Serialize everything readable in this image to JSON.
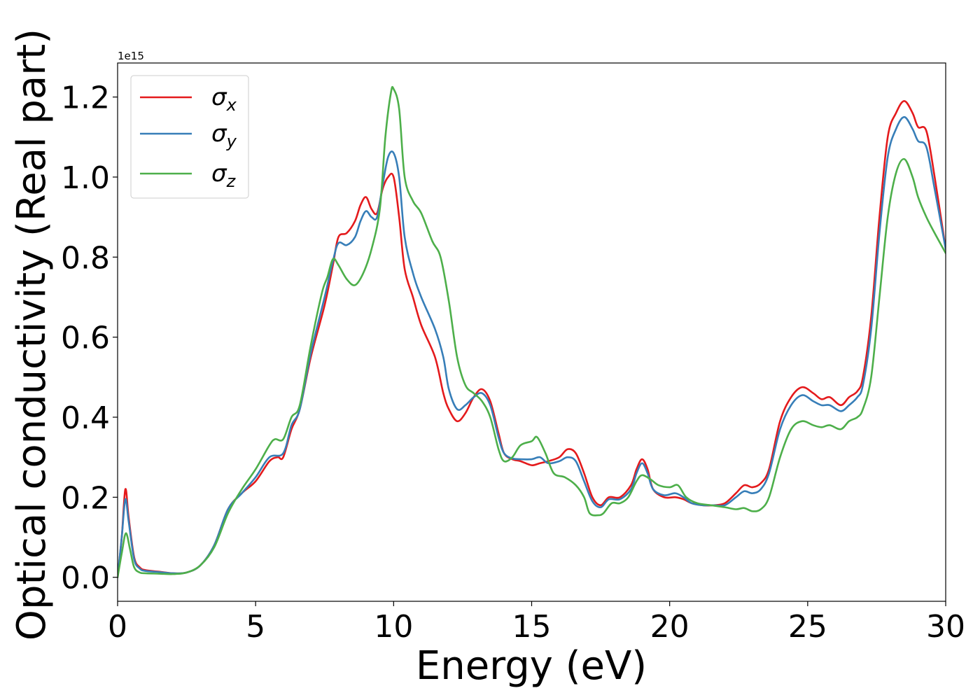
{
  "chart_data": {
    "type": "line",
    "title": "",
    "xlabel": "Energy (eV)",
    "ylabel": "Optical conductivity (Real part)",
    "y_offset_label": "1e15",
    "xlim": [
      0,
      30
    ],
    "ylim": [
      -0.06,
      1.285
    ],
    "x_ticks": [
      0,
      5,
      10,
      15,
      20,
      25,
      30
    ],
    "x_tick_labels": [
      "0",
      "5",
      "10",
      "15",
      "20",
      "25",
      "30"
    ],
    "y_ticks": [
      0.0,
      0.2,
      0.4,
      0.6,
      0.8,
      1.0,
      1.2
    ],
    "y_tick_labels": [
      "0.0",
      "0.2",
      "0.4",
      "0.6",
      "0.8",
      "1.0",
      "1.2"
    ],
    "grid": false,
    "legend_position": "top-left",
    "series": [
      {
        "name": "σx",
        "label_base": "σ",
        "label_sub": "x",
        "color": "#e41a1c",
        "points": [
          [
            0,
            0.0
          ],
          [
            0.15,
            0.1
          ],
          [
            0.28,
            0.22
          ],
          [
            0.4,
            0.15
          ],
          [
            0.6,
            0.05
          ],
          [
            0.8,
            0.025
          ],
          [
            1.0,
            0.018
          ],
          [
            1.5,
            0.014
          ],
          [
            2.0,
            0.01
          ],
          [
            2.5,
            0.012
          ],
          [
            3.0,
            0.03
          ],
          [
            3.5,
            0.08
          ],
          [
            4.0,
            0.17
          ],
          [
            4.5,
            0.21
          ],
          [
            5.0,
            0.24
          ],
          [
            5.5,
            0.29
          ],
          [
            5.8,
            0.3
          ],
          [
            6.0,
            0.3
          ],
          [
            6.3,
            0.37
          ],
          [
            6.6,
            0.42
          ],
          [
            7.0,
            0.55
          ],
          [
            7.5,
            0.68
          ],
          [
            7.8,
            0.78
          ],
          [
            8.0,
            0.85
          ],
          [
            8.3,
            0.86
          ],
          [
            8.6,
            0.89
          ],
          [
            8.8,
            0.93
          ],
          [
            9.0,
            0.95
          ],
          [
            9.2,
            0.92
          ],
          [
            9.4,
            0.91
          ],
          [
            9.6,
            0.97
          ],
          [
            9.8,
            1.0
          ],
          [
            10.0,
            1.0
          ],
          [
            10.2,
            0.9
          ],
          [
            10.4,
            0.77
          ],
          [
            10.7,
            0.7
          ],
          [
            11.0,
            0.63
          ],
          [
            11.5,
            0.55
          ],
          [
            11.8,
            0.46
          ],
          [
            12.0,
            0.42
          ],
          [
            12.3,
            0.39
          ],
          [
            12.6,
            0.41
          ],
          [
            12.9,
            0.45
          ],
          [
            13.2,
            0.47
          ],
          [
            13.5,
            0.44
          ],
          [
            13.8,
            0.36
          ],
          [
            14.0,
            0.31
          ],
          [
            14.3,
            0.295
          ],
          [
            14.6,
            0.29
          ],
          [
            15.0,
            0.28
          ],
          [
            15.3,
            0.285
          ],
          [
            15.6,
            0.29
          ],
          [
            16.0,
            0.3
          ],
          [
            16.3,
            0.32
          ],
          [
            16.6,
            0.31
          ],
          [
            16.9,
            0.26
          ],
          [
            17.2,
            0.2
          ],
          [
            17.5,
            0.18
          ],
          [
            17.8,
            0.2
          ],
          [
            18.2,
            0.2
          ],
          [
            18.6,
            0.23
          ],
          [
            18.8,
            0.27
          ],
          [
            19.0,
            0.295
          ],
          [
            19.2,
            0.27
          ],
          [
            19.4,
            0.22
          ],
          [
            19.8,
            0.2
          ],
          [
            20.2,
            0.2
          ],
          [
            20.5,
            0.195
          ],
          [
            20.8,
            0.185
          ],
          [
            21.2,
            0.18
          ],
          [
            21.6,
            0.18
          ],
          [
            22.0,
            0.185
          ],
          [
            22.4,
            0.21
          ],
          [
            22.7,
            0.23
          ],
          [
            23.0,
            0.225
          ],
          [
            23.3,
            0.235
          ],
          [
            23.6,
            0.27
          ],
          [
            24.0,
            0.39
          ],
          [
            24.4,
            0.45
          ],
          [
            24.8,
            0.475
          ],
          [
            25.2,
            0.46
          ],
          [
            25.5,
            0.445
          ],
          [
            25.8,
            0.45
          ],
          [
            26.2,
            0.43
          ],
          [
            26.5,
            0.45
          ],
          [
            26.8,
            0.465
          ],
          [
            27.0,
            0.5
          ],
          [
            27.3,
            0.65
          ],
          [
            27.6,
            0.9
          ],
          [
            27.9,
            1.1
          ],
          [
            28.2,
            1.16
          ],
          [
            28.5,
            1.19
          ],
          [
            28.8,
            1.16
          ],
          [
            29.0,
            1.125
          ],
          [
            29.3,
            1.115
          ],
          [
            29.6,
            1.0
          ],
          [
            30.0,
            0.82
          ]
        ]
      },
      {
        "name": "σy",
        "label_base": "σ",
        "label_sub": "y",
        "color": "#377eb8",
        "points": [
          [
            0,
            0.0
          ],
          [
            0.15,
            0.1
          ],
          [
            0.28,
            0.195
          ],
          [
            0.4,
            0.14
          ],
          [
            0.6,
            0.045
          ],
          [
            0.8,
            0.022
          ],
          [
            1.0,
            0.016
          ],
          [
            1.5,
            0.013
          ],
          [
            2.0,
            0.01
          ],
          [
            2.5,
            0.012
          ],
          [
            3.0,
            0.03
          ],
          [
            3.5,
            0.08
          ],
          [
            4.0,
            0.17
          ],
          [
            4.5,
            0.21
          ],
          [
            5.0,
            0.25
          ],
          [
            5.5,
            0.3
          ],
          [
            6.0,
            0.31
          ],
          [
            6.3,
            0.38
          ],
          [
            6.6,
            0.42
          ],
          [
            7.0,
            0.56
          ],
          [
            7.5,
            0.7
          ],
          [
            7.8,
            0.79
          ],
          [
            8.0,
            0.835
          ],
          [
            8.3,
            0.83
          ],
          [
            8.6,
            0.85
          ],
          [
            8.8,
            0.89
          ],
          [
            9.0,
            0.915
          ],
          [
            9.2,
            0.9
          ],
          [
            9.4,
            0.9
          ],
          [
            9.6,
            0.98
          ],
          [
            9.8,
            1.05
          ],
          [
            10.0,
            1.06
          ],
          [
            10.2,
            1.0
          ],
          [
            10.4,
            0.85
          ],
          [
            10.7,
            0.76
          ],
          [
            11.0,
            0.7
          ],
          [
            11.5,
            0.62
          ],
          [
            11.8,
            0.55
          ],
          [
            12.0,
            0.47
          ],
          [
            12.3,
            0.42
          ],
          [
            12.6,
            0.43
          ],
          [
            12.9,
            0.45
          ],
          [
            13.2,
            0.46
          ],
          [
            13.5,
            0.43
          ],
          [
            13.8,
            0.35
          ],
          [
            14.0,
            0.31
          ],
          [
            14.3,
            0.297
          ],
          [
            14.6,
            0.295
          ],
          [
            15.0,
            0.295
          ],
          [
            15.3,
            0.3
          ],
          [
            15.6,
            0.285
          ],
          [
            16.0,
            0.29
          ],
          [
            16.3,
            0.3
          ],
          [
            16.6,
            0.29
          ],
          [
            16.9,
            0.24
          ],
          [
            17.2,
            0.19
          ],
          [
            17.5,
            0.175
          ],
          [
            17.8,
            0.195
          ],
          [
            18.2,
            0.195
          ],
          [
            18.6,
            0.22
          ],
          [
            18.8,
            0.26
          ],
          [
            19.0,
            0.285
          ],
          [
            19.2,
            0.26
          ],
          [
            19.4,
            0.22
          ],
          [
            19.8,
            0.205
          ],
          [
            20.2,
            0.21
          ],
          [
            20.5,
            0.2
          ],
          [
            20.8,
            0.185
          ],
          [
            21.2,
            0.18
          ],
          [
            21.6,
            0.18
          ],
          [
            22.0,
            0.18
          ],
          [
            22.4,
            0.2
          ],
          [
            22.7,
            0.215
          ],
          [
            23.0,
            0.21
          ],
          [
            23.3,
            0.22
          ],
          [
            23.6,
            0.26
          ],
          [
            24.0,
            0.37
          ],
          [
            24.4,
            0.43
          ],
          [
            24.8,
            0.455
          ],
          [
            25.2,
            0.44
          ],
          [
            25.5,
            0.43
          ],
          [
            25.8,
            0.43
          ],
          [
            26.2,
            0.415
          ],
          [
            26.5,
            0.43
          ],
          [
            26.8,
            0.45
          ],
          [
            27.0,
            0.48
          ],
          [
            27.3,
            0.62
          ],
          [
            27.6,
            0.86
          ],
          [
            27.9,
            1.05
          ],
          [
            28.2,
            1.12
          ],
          [
            28.5,
            1.15
          ],
          [
            28.8,
            1.12
          ],
          [
            29.0,
            1.09
          ],
          [
            29.3,
            1.075
          ],
          [
            29.6,
            0.97
          ],
          [
            30.0,
            0.82
          ]
        ]
      },
      {
        "name": "σz",
        "label_base": "σ",
        "label_sub": "z",
        "color": "#4daf4a",
        "points": [
          [
            0,
            0.0
          ],
          [
            0.15,
            0.06
          ],
          [
            0.3,
            0.11
          ],
          [
            0.45,
            0.07
          ],
          [
            0.6,
            0.025
          ],
          [
            0.8,
            0.012
          ],
          [
            1.0,
            0.01
          ],
          [
            1.5,
            0.009
          ],
          [
            2.0,
            0.008
          ],
          [
            2.5,
            0.012
          ],
          [
            3.0,
            0.03
          ],
          [
            3.5,
            0.075
          ],
          [
            4.0,
            0.16
          ],
          [
            4.5,
            0.22
          ],
          [
            5.0,
            0.27
          ],
          [
            5.5,
            0.33
          ],
          [
            5.7,
            0.345
          ],
          [
            6.0,
            0.345
          ],
          [
            6.3,
            0.4
          ],
          [
            6.6,
            0.43
          ],
          [
            7.0,
            0.58
          ],
          [
            7.4,
            0.71
          ],
          [
            7.6,
            0.75
          ],
          [
            7.8,
            0.795
          ],
          [
            8.0,
            0.78
          ],
          [
            8.3,
            0.745
          ],
          [
            8.6,
            0.73
          ],
          [
            8.9,
            0.76
          ],
          [
            9.2,
            0.82
          ],
          [
            9.5,
            0.92
          ],
          [
            9.7,
            1.1
          ],
          [
            9.9,
            1.21
          ],
          [
            10.0,
            1.22
          ],
          [
            10.2,
            1.17
          ],
          [
            10.4,
            1.0
          ],
          [
            10.7,
            0.94
          ],
          [
            11.0,
            0.91
          ],
          [
            11.4,
            0.84
          ],
          [
            11.7,
            0.8
          ],
          [
            12.0,
            0.69
          ],
          [
            12.3,
            0.55
          ],
          [
            12.6,
            0.48
          ],
          [
            12.9,
            0.46
          ],
          [
            13.2,
            0.44
          ],
          [
            13.5,
            0.4
          ],
          [
            13.8,
            0.32
          ],
          [
            14.0,
            0.29
          ],
          [
            14.3,
            0.3
          ],
          [
            14.6,
            0.33
          ],
          [
            15.0,
            0.34
          ],
          [
            15.2,
            0.35
          ],
          [
            15.5,
            0.31
          ],
          [
            15.8,
            0.26
          ],
          [
            16.2,
            0.25
          ],
          [
            16.6,
            0.23
          ],
          [
            16.9,
            0.2
          ],
          [
            17.1,
            0.16
          ],
          [
            17.4,
            0.155
          ],
          [
            17.6,
            0.16
          ],
          [
            17.9,
            0.185
          ],
          [
            18.2,
            0.185
          ],
          [
            18.5,
            0.2
          ],
          [
            18.8,
            0.24
          ],
          [
            19.0,
            0.255
          ],
          [
            19.3,
            0.245
          ],
          [
            19.6,
            0.23
          ],
          [
            20.0,
            0.225
          ],
          [
            20.3,
            0.23
          ],
          [
            20.6,
            0.2
          ],
          [
            21.0,
            0.185
          ],
          [
            21.5,
            0.18
          ],
          [
            22.0,
            0.175
          ],
          [
            22.4,
            0.17
          ],
          [
            22.7,
            0.173
          ],
          [
            23.0,
            0.165
          ],
          [
            23.3,
            0.17
          ],
          [
            23.6,
            0.2
          ],
          [
            24.0,
            0.3
          ],
          [
            24.4,
            0.37
          ],
          [
            24.8,
            0.39
          ],
          [
            25.2,
            0.38
          ],
          [
            25.5,
            0.375
          ],
          [
            25.8,
            0.38
          ],
          [
            26.2,
            0.37
          ],
          [
            26.5,
            0.39
          ],
          [
            26.8,
            0.4
          ],
          [
            27.0,
            0.42
          ],
          [
            27.3,
            0.5
          ],
          [
            27.6,
            0.7
          ],
          [
            27.9,
            0.9
          ],
          [
            28.2,
            1.01
          ],
          [
            28.5,
            1.045
          ],
          [
            28.8,
            1.0
          ],
          [
            29.0,
            0.95
          ],
          [
            29.3,
            0.9
          ],
          [
            29.6,
            0.86
          ],
          [
            30.0,
            0.81
          ]
        ]
      }
    ]
  }
}
